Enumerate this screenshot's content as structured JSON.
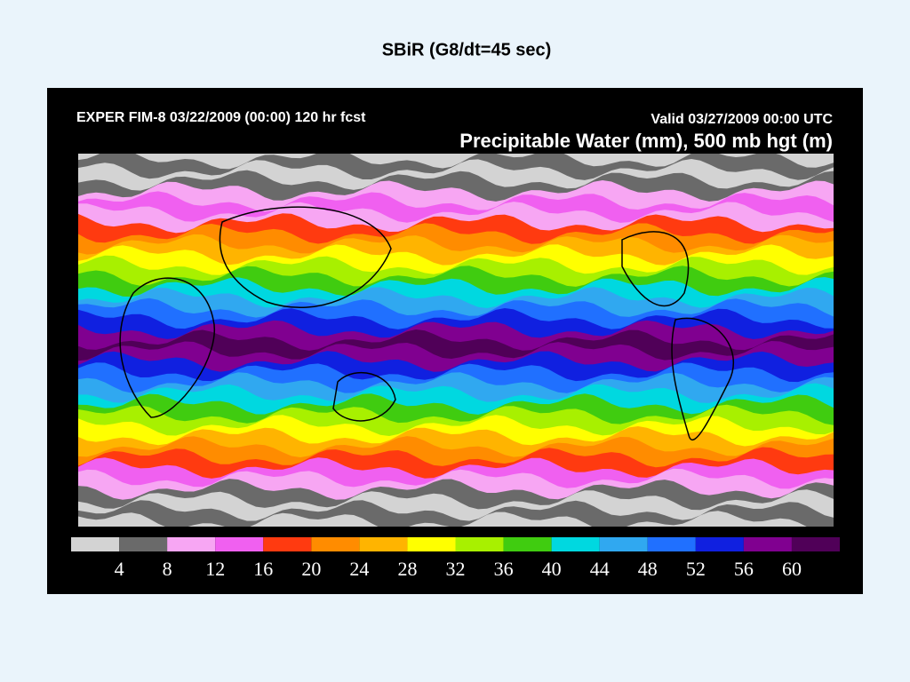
{
  "title": "SBiR (G8/dt=45 sec)",
  "map": {
    "header_left": "EXPER FIM-8 03/22/2009 (00:00) 120 hr fcst",
    "header_right": "Valid 03/27/2009 00:00 UTC",
    "map_title": "Precipitable Water (mm), 500 mb hgt (m)",
    "colorbar": {
      "colors": [
        "#d3d3d3",
        "#6a6a6a",
        "#f7a6f3",
        "#f060f0",
        "#ff3a10",
        "#ff8c00",
        "#ffb400",
        "#ffff00",
        "#a8f000",
        "#40cc10",
        "#00d8e0",
        "#30a8f0",
        "#2070ff",
        "#1020e0",
        "#800090",
        "#500058"
      ],
      "labels": [
        4,
        8,
        12,
        16,
        20,
        24,
        28,
        32,
        36,
        40,
        44,
        48,
        52,
        56,
        60
      ]
    }
  }
}
